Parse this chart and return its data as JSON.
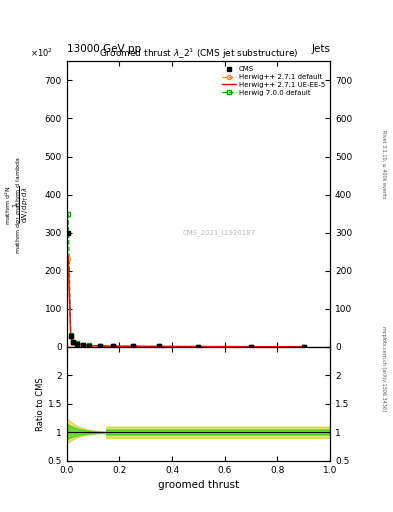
{
  "header_left": "13000 GeV pp",
  "header_right": "Jets",
  "plot_title": "Groomed thrust $\\lambda\\_2^1$ (CMS jet substructure)",
  "watermark": "CMS_2021_I1920187",
  "rivet_text": "Rivet 3.1.10, ≥ 400k events",
  "mcplots_text": "mcplots.cern.ch [arXiv:1306.3436]",
  "xlabel": "groomed thrust",
  "ylabel_ratio": "Ratio to CMS",
  "xlim": [
    0,
    1
  ],
  "ylim_main": [
    0,
    750
  ],
  "ylim_ratio": [
    0.5,
    2.5
  ],
  "yticks_main": [
    0,
    100,
    200,
    300,
    400,
    500,
    600,
    700
  ],
  "yticks_ratio": [
    0.5,
    1.0,
    1.5,
    2.0,
    2.5
  ],
  "cms_x": [
    0.005,
    0.015,
    0.025,
    0.04,
    0.06,
    0.085,
    0.125,
    0.175,
    0.25,
    0.35,
    0.5,
    0.7,
    0.9
  ],
  "cms_y": [
    300,
    28,
    12,
    8,
    5,
    3,
    2,
    1.5,
    1,
    0.7,
    0.4,
    0.2,
    0.1
  ],
  "herwig_default_x": [
    0.005,
    0.015,
    0.025,
    0.04,
    0.06,
    0.085,
    0.125,
    0.175,
    0.25,
    0.35,
    0.5,
    0.7,
    0.9
  ],
  "herwig_default_y": [
    230,
    25,
    11,
    7.5,
    4.5,
    2.8,
    1.8,
    1.3,
    0.9,
    0.6,
    0.35,
    0.18,
    0.09
  ],
  "herwig_ueee5_x": [
    0.005,
    0.015,
    0.025,
    0.04,
    0.06,
    0.085,
    0.125,
    0.175,
    0.25,
    0.35,
    0.5,
    0.7,
    0.9
  ],
  "herwig_ueee5_y": [
    240,
    26,
    11.5,
    7.8,
    4.7,
    2.9,
    1.9,
    1.35,
    0.92,
    0.63,
    0.37,
    0.19,
    0.095
  ],
  "herwig7_x": [
    0.005,
    0.015,
    0.025,
    0.04,
    0.06,
    0.085,
    0.125,
    0.175,
    0.25,
    0.35,
    0.5,
    0.7,
    0.9
  ],
  "herwig7_y": [
    350,
    32,
    13,
    8.5,
    5.2,
    3.2,
    2.1,
    1.6,
    1.05,
    0.72,
    0.42,
    0.22,
    0.11
  ],
  "cms_color": "#000000",
  "herwig_default_color": "#ff8800",
  "herwig_ueee5_color": "#ff0000",
  "herwig7_color": "#00aa00",
  "yellow_color": "#cccc00",
  "green_color": "#00cc00",
  "bg_color": "#ffffff"
}
